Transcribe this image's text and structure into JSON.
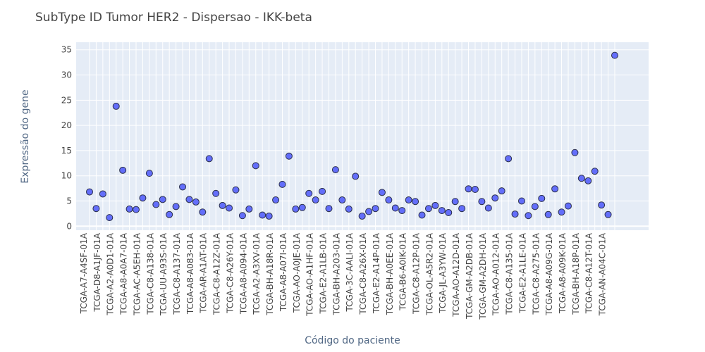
{
  "chart_data": {
    "type": "scatter",
    "title": "SubType ID Tumor HER2 - Dispersao - IKK-beta",
    "xlabel": "Código do paciente",
    "ylabel": "Expressão do gene",
    "ylim": [
      -0.8,
      36.5
    ],
    "yticks": [
      0,
      5,
      10,
      15,
      20,
      25,
      30,
      35
    ],
    "grid": true,
    "marker_color": "#636efa",
    "plot_bg": "#e5ecf6",
    "x": [
      "p1",
      "p2",
      "p3",
      "p4",
      "p5",
      "p6",
      "p7",
      "p8",
      "p9",
      "p10",
      "p11",
      "p12",
      "p13",
      "p14",
      "p15",
      "p16",
      "p17",
      "p18",
      "p19",
      "p20",
      "p21",
      "p22",
      "p23",
      "p24",
      "p25",
      "p26",
      "p27",
      "p28",
      "p29",
      "p30",
      "p31",
      "p32",
      "p33",
      "p34",
      "p35",
      "p36",
      "p37",
      "p38",
      "p39",
      "p40",
      "p41",
      "p42",
      "p43",
      "p44",
      "p45",
      "p46",
      "p47",
      "p48",
      "p49",
      "p50",
      "p51",
      "p52",
      "p53",
      "p54",
      "p55",
      "p56",
      "p57",
      "p58",
      "p59",
      "p60",
      "p61",
      "p62",
      "p63",
      "p64",
      "p65",
      "p66",
      "p67",
      "p68",
      "p69",
      "p70",
      "p71",
      "p72",
      "p73",
      "p74",
      "p75",
      "p76",
      "p77",
      "p78",
      "p79",
      "p80"
    ],
    "tick_labels": [
      "TCGA-A7-A4SF-01A",
      "TCGA-D8-A1JF-01A",
      "TCGA-A2-A0D1-01A",
      "TCGA-A8-A0A7-01A",
      "TCGA-AC-A5EH-01A",
      "TCGA-C8-A138-01A",
      "TCGA-UU-A93S-01A",
      "TCGA-C8-A137-01A",
      "TCGA-A8-A083-01A",
      "TCGA-AR-A1AT-01A",
      "TCGA-C8-A12Z-01A",
      "TCGA-C8-A26Y-01A",
      "TCGA-A8-A094-01A",
      "TCGA-A2-A3XV-01A",
      "TCGA-BH-A18R-01A",
      "TCGA-A8-A07I-01A",
      "TCGA-AO-A0JE-01A",
      "TCGA-AO-A1HF-01A",
      "TCGA-E2-A1LB-01A",
      "TCGA-BH-A203-01A",
      "TCGA-3C-AALI-01A",
      "TCGA-C8-A26X-01A",
      "TCGA-E2-A14P-01A",
      "TCGA-BH-A0EE-01A",
      "TCGA-B6-A0IK-01A",
      "TCGA-C8-A12P-01A",
      "TCGA-OL-A5R2-01A",
      "TCGA-JL-A3YW-01A",
      "TCGA-AO-A12D-01A",
      "TCGA-GM-A2DB-01A",
      "TCGA-GM-A2DH-01A",
      "TCGA-AO-A012-01A",
      "TCGA-C8-A135-01A",
      "TCGA-E2-A1LE-01A",
      "TCGA-C8-A275-01A",
      "TCGA-A8-A09G-01A",
      "TCGA-A8-A09K-01A",
      "TCGA-BH-A18P-01A",
      "TCGA-C8-A12T-01A",
      "TCGA-AN-A04C-01A"
    ],
    "y": [
      6.8,
      3.5,
      6.4,
      1.7,
      23.8,
      11.1,
      3.4,
      3.3,
      5.6,
      10.5,
      4.3,
      5.3,
      2.3,
      3.9,
      7.8,
      5.3,
      4.8,
      2.8,
      13.4,
      6.5,
      4.1,
      3.6,
      7.2,
      2.1,
      3.4,
      12.0,
      2.2,
      2.0,
      5.2,
      8.3,
      13.9,
      3.4,
      3.7,
      6.5,
      5.2,
      6.9,
      3.5,
      11.2,
      5.2,
      3.4,
      9.9,
      2.0,
      2.9,
      3.5,
      6.7,
      5.2,
      3.6,
      3.1,
      5.2,
      4.9,
      2.2,
      3.5,
      4.1,
      3.1,
      2.7,
      4.9,
      3.5,
      7.4,
      7.3,
      4.9,
      3.6,
      5.6,
      7.0,
      13.4,
      2.4,
      5.0,
      2.1,
      3.9,
      5.5,
      2.3,
      7.4,
      2.8,
      4.0,
      14.6,
      9.5,
      9.0,
      10.9,
      4.2,
      2.3,
      33.9
    ]
  }
}
